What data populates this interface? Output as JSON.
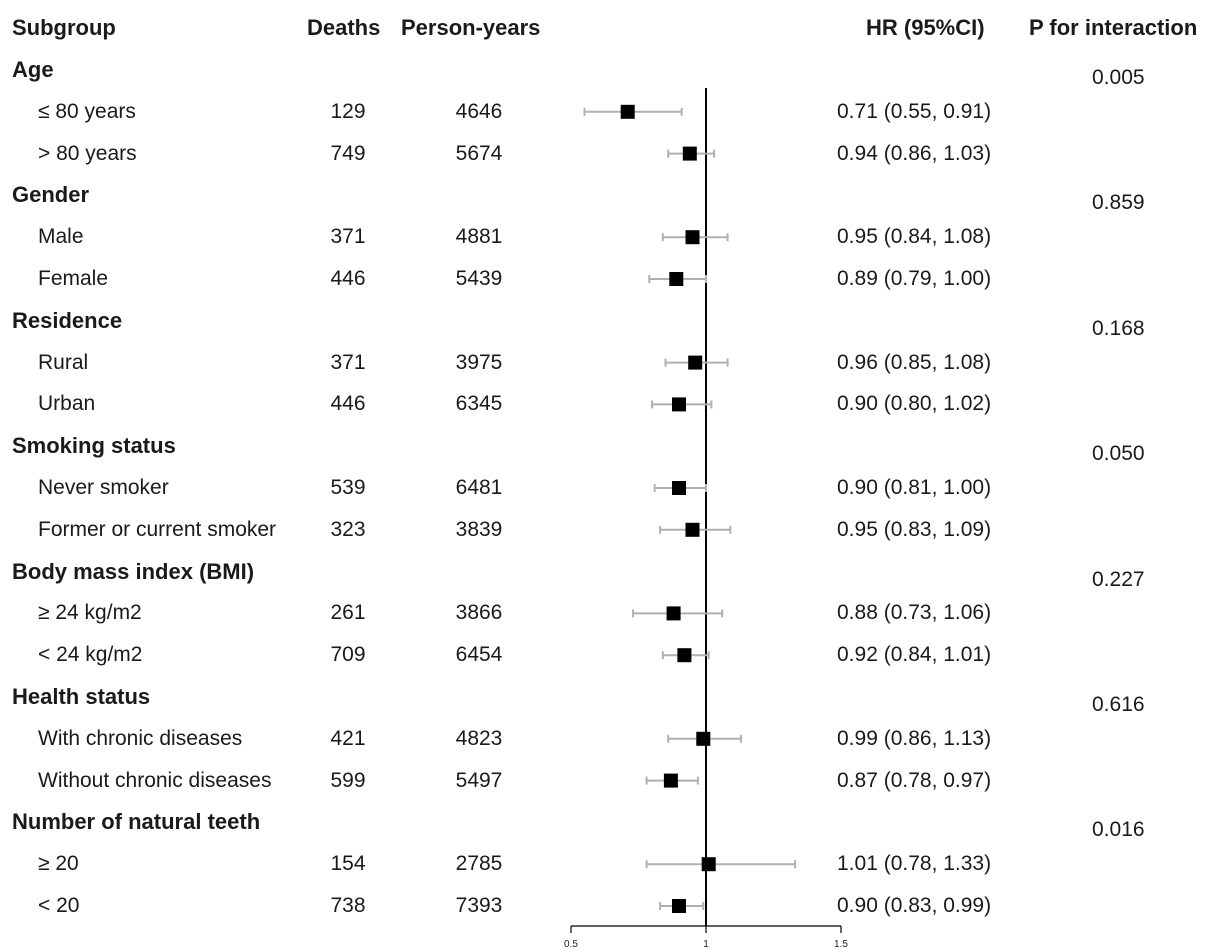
{
  "headers": {
    "subgroup": "Subgroup",
    "deaths": "Deaths",
    "person_years": "Person-years",
    "hr": "HR (95%CI)",
    "p": "P for interaction"
  },
  "groups": [
    {
      "name": "Age",
      "p": "0.005",
      "rows": [
        {
          "label": "≤ 80 years",
          "deaths": "129",
          "py": "4646",
          "hr_text": "0.71 (0.55, 0.91)"
        },
        {
          "label": "> 80 years",
          "deaths": "749",
          "py": "5674",
          "hr_text": "0.94 (0.86, 1.03)"
        }
      ]
    },
    {
      "name": "Gender",
      "p": "0.859",
      "rows": [
        {
          "label": "Male",
          "deaths": "371",
          "py": "4881",
          "hr_text": "0.95 (0.84, 1.08)"
        },
        {
          "label": "Female",
          "deaths": "446",
          "py": "5439",
          "hr_text": "0.89 (0.79, 1.00)"
        }
      ]
    },
    {
      "name": "Residence",
      "p": "0.168",
      "rows": [
        {
          "label": "Rural",
          "deaths": "371",
          "py": "3975",
          "hr_text": "0.96 (0.85, 1.08)"
        },
        {
          "label": "Urban",
          "deaths": "446",
          "py": "6345",
          "hr_text": "0.90 (0.80, 1.02)"
        }
      ]
    },
    {
      "name": "Smoking status",
      "p": "0.050",
      "rows": [
        {
          "label": "Never smoker",
          "deaths": "539",
          "py": "6481",
          "hr_text": "0.90 (0.81, 1.00)"
        },
        {
          "label": "Former or current smoker",
          "deaths": "323",
          "py": "3839",
          "hr_text": "0.95 (0.83, 1.09)"
        }
      ]
    },
    {
      "name": "Body mass index (BMI)",
      "p": "0.227",
      "rows": [
        {
          "label": "≥ 24 kg/m2",
          "deaths": "261",
          "py": "3866",
          "hr_text": "0.88 (0.73, 1.06)"
        },
        {
          "label": "< 24 kg/m2",
          "deaths": "709",
          "py": "6454",
          "hr_text": "0.92 (0.84, 1.01)"
        }
      ]
    },
    {
      "name": "Health status",
      "p": "0.616",
      "rows": [
        {
          "label": "With chronic diseases",
          "deaths": "421",
          "py": "4823",
          "hr_text": "0.99 (0.86, 1.13)"
        },
        {
          "label": "Without chronic diseases",
          "deaths": "599",
          "py": "5497",
          "hr_text": "0.87 (0.78, 0.97)"
        }
      ]
    },
    {
      "name": "Number of natural teeth",
      "p": "0.016",
      "rows": [
        {
          "label": "≥ 20",
          "deaths": "154",
          "py": "2785",
          "hr_text": "1.01 (0.78, 1.33)"
        },
        {
          "label": "< 20",
          "deaths": "738",
          "py": "7393",
          "hr_text": "0.90 (0.83, 0.99)"
        }
      ]
    }
  ],
  "chart_data": {
    "type": "forest",
    "title": "",
    "xlabel": "",
    "xlim": [
      0.5,
      1.5
    ],
    "xticks": [
      "0.5",
      "1",
      "1.5"
    ],
    "reference_line": 1,
    "categories": [
      "≤ 80 years",
      "> 80 years",
      "Male",
      "Female",
      "Rural",
      "Urban",
      "Never smoker",
      "Former or current smoker",
      "≥ 24 kg/m2",
      "< 24 kg/m2",
      "With chronic diseases",
      "Without chronic diseases",
      "≥ 20",
      "< 20"
    ],
    "hr": [
      0.71,
      0.94,
      0.95,
      0.89,
      0.96,
      0.9,
      0.9,
      0.95,
      0.88,
      0.92,
      0.99,
      0.87,
      1.01,
      0.9
    ],
    "lower": [
      0.55,
      0.86,
      0.84,
      0.79,
      0.85,
      0.8,
      0.81,
      0.83,
      0.73,
      0.84,
      0.86,
      0.78,
      0.78,
      0.83
    ],
    "upper": [
      0.91,
      1.03,
      1.08,
      1.0,
      1.08,
      1.02,
      1.0,
      1.09,
      1.06,
      1.01,
      1.13,
      0.97,
      1.33,
      0.99
    ],
    "colors": {
      "marker": "#000000",
      "ci": "#b0b0b0",
      "axis": "#000000"
    }
  }
}
